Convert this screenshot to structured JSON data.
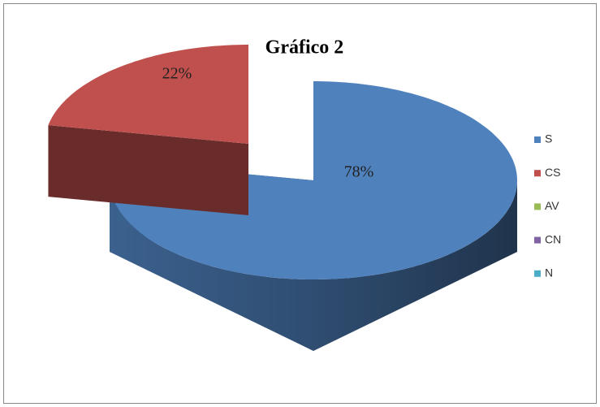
{
  "chart_data": {
    "type": "pie",
    "title": "Gráfico 2",
    "categories": [
      "S",
      "CS",
      "AV",
      "CN",
      "N"
    ],
    "values": [
      78,
      22,
      0,
      0,
      0
    ],
    "value_labels": [
      "78%",
      "22%",
      null,
      null,
      null
    ],
    "colors": [
      "#4f81bd",
      "#c0504d",
      "#9bbb59",
      "#8064a2",
      "#4bacc6"
    ],
    "legend": "right"
  }
}
